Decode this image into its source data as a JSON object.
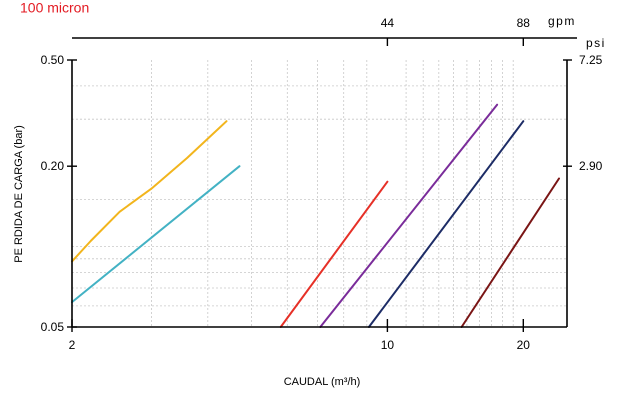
{
  "caption": "100 micron",
  "chart_data": {
    "type": "line",
    "xscale": "log",
    "yscale": "log",
    "xlabel": "CAUDAL (m³/h)",
    "ylabel": "PE RDIDA DE CARGA (bar)",
    "xlim": [
      2,
      25
    ],
    "ylim": [
      0.05,
      0.5
    ],
    "x_ticks": [
      2,
      10,
      20
    ],
    "y_ticks": [
      0.05,
      0.2,
      0.5
    ],
    "top_axis": {
      "unit": "gpm",
      "ticks": [
        {
          "label": "44",
          "value": 10
        },
        {
          "label": "88",
          "value": 20
        }
      ]
    },
    "right_axis": {
      "unit": "psi",
      "ticks": [
        {
          "label": "7.25",
          "value": 0.5
        },
        {
          "label": "2.90",
          "value": 0.2
        }
      ]
    },
    "grid": true,
    "series": [
      {
        "color": "#f2b51d",
        "x": [
          2.0,
          2.2,
          2.55,
          3.0,
          3.6,
          4.4
        ],
        "y": [
          0.088,
          0.105,
          0.135,
          0.165,
          0.215,
          0.295
        ]
      },
      {
        "color": "#43b2c4",
        "x": [
          2.0,
          4.7
        ],
        "y": [
          0.062,
          0.2
        ]
      },
      {
        "color": "#e63027",
        "x": [
          5.8,
          10.0
        ],
        "y": [
          0.05,
          0.175
        ]
      },
      {
        "color": "#7a2c9a",
        "x": [
          7.1,
          17.5
        ],
        "y": [
          0.05,
          0.34
        ]
      },
      {
        "color": "#1d2c66",
        "x": [
          9.1,
          20.0
        ],
        "y": [
          0.05,
          0.295
        ]
      },
      {
        "color": "#7a1515",
        "x": [
          14.6,
          24.0
        ],
        "y": [
          0.05,
          0.18
        ]
      }
    ]
  }
}
